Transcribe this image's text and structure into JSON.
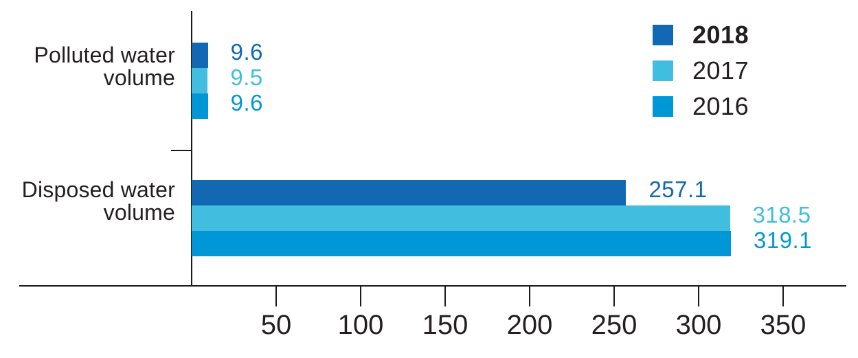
{
  "background": "#ffffff",
  "text_color": "#231f20",
  "axis_color": "#1a1a1a",
  "chart_data": {
    "type": "bar",
    "orientation": "horizontal",
    "title": "",
    "categories": [
      "Polluted water volume",
      "Disposed water volume"
    ],
    "series": [
      {
        "name": "2018",
        "color": "#1268b2",
        "bold": true,
        "values": [
          9.6,
          257.1
        ],
        "labels": [
          "9.6",
          "257.1"
        ]
      },
      {
        "name": "2017",
        "color": "#40bddf",
        "bold": false,
        "values": [
          9.5,
          318.5
        ],
        "labels": [
          "9.5",
          "318.5"
        ]
      },
      {
        "name": "2016",
        "color": "#0097d6",
        "bold": false,
        "values": [
          9.6,
          319.1
        ],
        "labels": [
          "9.6",
          "319.1"
        ]
      }
    ],
    "x_ticks": [
      50,
      100,
      150,
      200,
      250,
      300,
      350
    ],
    "xlim": [
      0,
      387
    ],
    "grid": false,
    "legend_position": "top-right",
    "value_labels_shown": true
  },
  "category_labels": [
    {
      "line1": "Polluted water",
      "line2": "volume"
    },
    {
      "line1": "Disposed water",
      "line2": "volume"
    }
  ],
  "legend": {
    "items": [
      {
        "label": "2018"
      },
      {
        "label": "2017"
      },
      {
        "label": "2016"
      }
    ]
  }
}
